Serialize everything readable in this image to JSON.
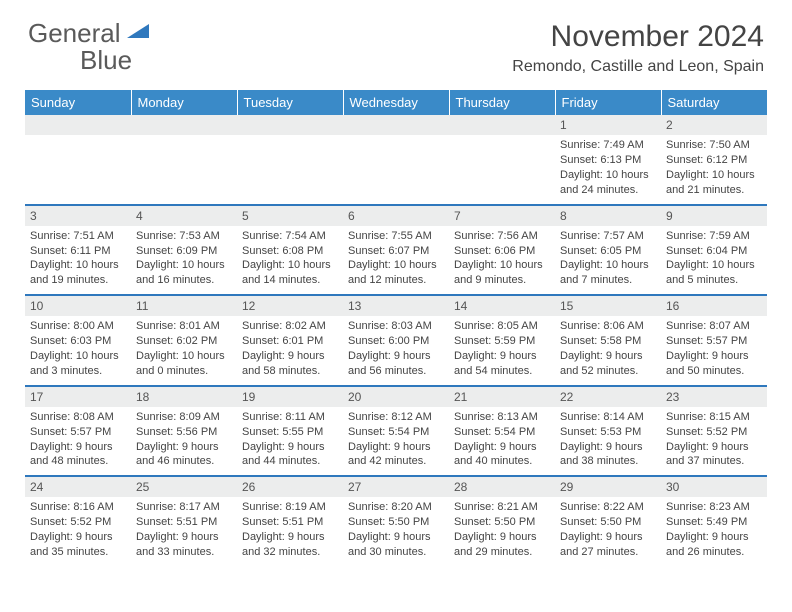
{
  "logo": {
    "word1": "General",
    "word2": "Blue"
  },
  "title": "November 2024",
  "location": "Remondo, Castille and Leon, Spain",
  "colors": {
    "header_bg": "#3a8ac8",
    "header_text": "#ffffff",
    "border": "#2f78bd",
    "daynum_bg": "#eceded",
    "text": "#444444"
  },
  "dayHeaders": [
    "Sunday",
    "Monday",
    "Tuesday",
    "Wednesday",
    "Thursday",
    "Friday",
    "Saturday"
  ],
  "weeks": [
    [
      {},
      {},
      {},
      {},
      {},
      {
        "n": "1",
        "sr": "7:49 AM",
        "ss": "6:13 PM",
        "dl": "10 hours and 24 minutes."
      },
      {
        "n": "2",
        "sr": "7:50 AM",
        "ss": "6:12 PM",
        "dl": "10 hours and 21 minutes."
      }
    ],
    [
      {
        "n": "3",
        "sr": "7:51 AM",
        "ss": "6:11 PM",
        "dl": "10 hours and 19 minutes."
      },
      {
        "n": "4",
        "sr": "7:53 AM",
        "ss": "6:09 PM",
        "dl": "10 hours and 16 minutes."
      },
      {
        "n": "5",
        "sr": "7:54 AM",
        "ss": "6:08 PM",
        "dl": "10 hours and 14 minutes."
      },
      {
        "n": "6",
        "sr": "7:55 AM",
        "ss": "6:07 PM",
        "dl": "10 hours and 12 minutes."
      },
      {
        "n": "7",
        "sr": "7:56 AM",
        "ss": "6:06 PM",
        "dl": "10 hours and 9 minutes."
      },
      {
        "n": "8",
        "sr": "7:57 AM",
        "ss": "6:05 PM",
        "dl": "10 hours and 7 minutes."
      },
      {
        "n": "9",
        "sr": "7:59 AM",
        "ss": "6:04 PM",
        "dl": "10 hours and 5 minutes."
      }
    ],
    [
      {
        "n": "10",
        "sr": "8:00 AM",
        "ss": "6:03 PM",
        "dl": "10 hours and 3 minutes."
      },
      {
        "n": "11",
        "sr": "8:01 AM",
        "ss": "6:02 PM",
        "dl": "10 hours and 0 minutes."
      },
      {
        "n": "12",
        "sr": "8:02 AM",
        "ss": "6:01 PM",
        "dl": "9 hours and 58 minutes."
      },
      {
        "n": "13",
        "sr": "8:03 AM",
        "ss": "6:00 PM",
        "dl": "9 hours and 56 minutes."
      },
      {
        "n": "14",
        "sr": "8:05 AM",
        "ss": "5:59 PM",
        "dl": "9 hours and 54 minutes."
      },
      {
        "n": "15",
        "sr": "8:06 AM",
        "ss": "5:58 PM",
        "dl": "9 hours and 52 minutes."
      },
      {
        "n": "16",
        "sr": "8:07 AM",
        "ss": "5:57 PM",
        "dl": "9 hours and 50 minutes."
      }
    ],
    [
      {
        "n": "17",
        "sr": "8:08 AM",
        "ss": "5:57 PM",
        "dl": "9 hours and 48 minutes."
      },
      {
        "n": "18",
        "sr": "8:09 AM",
        "ss": "5:56 PM",
        "dl": "9 hours and 46 minutes."
      },
      {
        "n": "19",
        "sr": "8:11 AM",
        "ss": "5:55 PM",
        "dl": "9 hours and 44 minutes."
      },
      {
        "n": "20",
        "sr": "8:12 AM",
        "ss": "5:54 PM",
        "dl": "9 hours and 42 minutes."
      },
      {
        "n": "21",
        "sr": "8:13 AM",
        "ss": "5:54 PM",
        "dl": "9 hours and 40 minutes."
      },
      {
        "n": "22",
        "sr": "8:14 AM",
        "ss": "5:53 PM",
        "dl": "9 hours and 38 minutes."
      },
      {
        "n": "23",
        "sr": "8:15 AM",
        "ss": "5:52 PM",
        "dl": "9 hours and 37 minutes."
      }
    ],
    [
      {
        "n": "24",
        "sr": "8:16 AM",
        "ss": "5:52 PM",
        "dl": "9 hours and 35 minutes."
      },
      {
        "n": "25",
        "sr": "8:17 AM",
        "ss": "5:51 PM",
        "dl": "9 hours and 33 minutes."
      },
      {
        "n": "26",
        "sr": "8:19 AM",
        "ss": "5:51 PM",
        "dl": "9 hours and 32 minutes."
      },
      {
        "n": "27",
        "sr": "8:20 AM",
        "ss": "5:50 PM",
        "dl": "9 hours and 30 minutes."
      },
      {
        "n": "28",
        "sr": "8:21 AM",
        "ss": "5:50 PM",
        "dl": "9 hours and 29 minutes."
      },
      {
        "n": "29",
        "sr": "8:22 AM",
        "ss": "5:50 PM",
        "dl": "9 hours and 27 minutes."
      },
      {
        "n": "30",
        "sr": "8:23 AM",
        "ss": "5:49 PM",
        "dl": "9 hours and 26 minutes."
      }
    ]
  ],
  "labels": {
    "sunrise": "Sunrise: ",
    "sunset": "Sunset: ",
    "daylight": "Daylight: "
  }
}
